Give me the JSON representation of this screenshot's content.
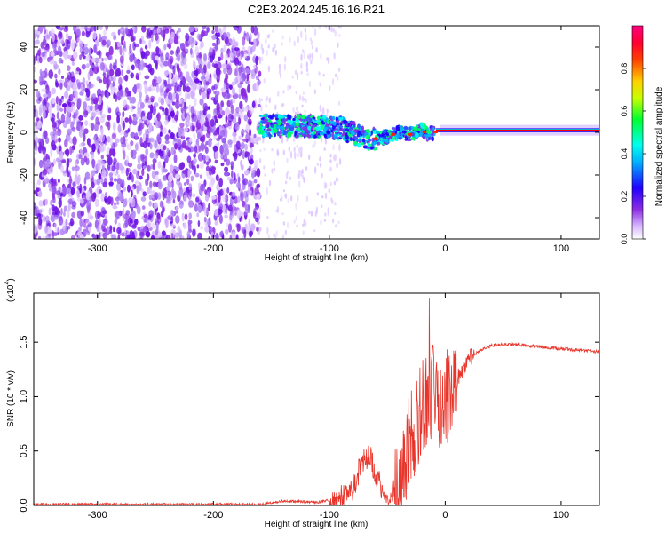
{
  "figure": {
    "title": "C2E3.2024.245.16.16.R21"
  },
  "chart_data": [
    {
      "type": "heatmap",
      "xlabel": "Height of straight line (km)",
      "ylabel": "Frequency (Hz)",
      "xlim": [
        -355,
        133
      ],
      "ylim": [
        -50,
        50
      ],
      "xticks": [
        -300,
        -200,
        -100,
        0,
        100
      ],
      "xtick_labels": [
        "-300",
        "-200",
        "-100",
        "0",
        "100"
      ],
      "yticks": [
        -40,
        -20,
        0,
        20,
        40
      ],
      "ytick_labels": [
        "-40",
        "-20",
        "0",
        "20",
        "40"
      ],
      "colorbar": {
        "label": "Normalized spectral amplitude",
        "range": [
          0,
          1
        ],
        "ticks": [
          0.0,
          0.2,
          0.4,
          0.6,
          0.8
        ],
        "tick_labels": [
          "0.0",
          "0.2",
          "0.4",
          "0.6",
          "0.8"
        ],
        "colormap": [
          "#ffffff",
          "#d6b3ff",
          "#8a2be2",
          "#1e00ff",
          "#00ffff",
          "#00ff00",
          "#ffff00",
          "#ff8c00",
          "#ff0000",
          "#ff0080"
        ]
      },
      "noise_region_x": [
        -355,
        -160
      ],
      "signal_trace": {
        "x": [
          -160,
          -140,
          -120,
          -100,
          -90,
          -80,
          -70,
          -60,
          -50,
          -40,
          -30,
          -20,
          -15,
          -10,
          0,
          50,
          100,
          133
        ],
        "freq": [
          3,
          3,
          3,
          2,
          2,
          0,
          -3,
          -3,
          -2,
          0,
          -1,
          1,
          -1,
          0,
          1,
          1,
          1,
          1
        ]
      },
      "grid": false
    },
    {
      "type": "line",
      "xlabel": "Height of straight line (km)",
      "ylabel": "SNR (10 * v/v)",
      "yscale_label": "(x10",
      "yscale_exp": "4",
      "xlim": [
        -355,
        133
      ],
      "ylim": [
        0,
        1.95
      ],
      "xticks": [
        -300,
        -200,
        -100,
        0,
        100
      ],
      "xtick_labels": [
        "-300",
        "-200",
        "-100",
        "0",
        "100"
      ],
      "yticks": [
        0.0,
        0.5,
        1.0,
        1.5
      ],
      "ytick_labels": [
        "0.0",
        "0.5",
        "1.0",
        "1.5"
      ],
      "series": [
        {
          "color": "#e8352b",
          "x": [
            -355,
            -160,
            -140,
            -110,
            -100,
            -90,
            -80,
            -75,
            -70,
            -65,
            -60,
            -55,
            -50,
            -45,
            -40,
            -35,
            -30,
            -25,
            -20,
            -15,
            -10,
            -5,
            0,
            5,
            10,
            15,
            20,
            30,
            40,
            50,
            60,
            80,
            100,
            133
          ],
          "y": [
            0.01,
            0.01,
            0.04,
            0.03,
            0.05,
            0.07,
            0.15,
            0.3,
            0.42,
            0.45,
            0.3,
            0.15,
            0.05,
            0.08,
            0.2,
            0.45,
            0.6,
            0.75,
            0.9,
            1.0,
            1.05,
            0.95,
            1.0,
            1.05,
            1.15,
            1.25,
            1.35,
            1.42,
            1.47,
            1.48,
            1.48,
            1.46,
            1.44,
            1.41
          ]
        }
      ],
      "grid": false
    }
  ]
}
